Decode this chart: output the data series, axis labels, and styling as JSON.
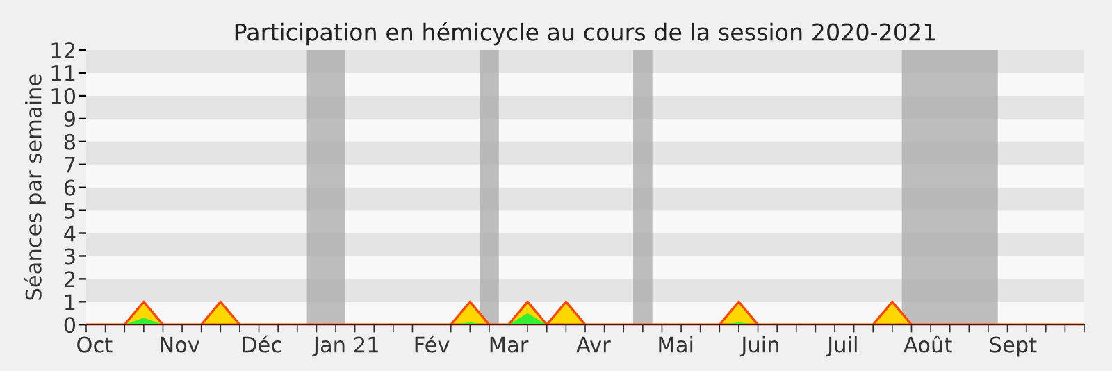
{
  "chart_data": {
    "type": "area",
    "title": "Participation en hémicycle au cours de la session 2020-2021",
    "ylabel": "Séances par semaine",
    "x": [
      "2020-09-28",
      "2020-10-05",
      "2020-10-12",
      "2020-10-19",
      "2020-10-26",
      "2020-11-02",
      "2020-11-09",
      "2020-11-16",
      "2020-11-23",
      "2020-11-30",
      "2020-12-07",
      "2020-12-14",
      "2020-12-21",
      "2020-12-28",
      "2021-01-04",
      "2021-01-11",
      "2021-01-18",
      "2021-01-25",
      "2021-02-01",
      "2021-02-08",
      "2021-02-15",
      "2021-02-22",
      "2021-03-01",
      "2021-03-08",
      "2021-03-15",
      "2021-03-22",
      "2021-03-29",
      "2021-04-05",
      "2021-04-12",
      "2021-04-19",
      "2021-04-26",
      "2021-05-03",
      "2021-05-10",
      "2021-05-17",
      "2021-05-24",
      "2021-05-31",
      "2021-06-07",
      "2021-06-14",
      "2021-06-21",
      "2021-06-28",
      "2021-07-05",
      "2021-07-12",
      "2021-07-19",
      "2021-07-26",
      "2021-08-02",
      "2021-08-09",
      "2021-08-16",
      "2021-08-23",
      "2021-08-30",
      "2021-09-06",
      "2021-09-13",
      "2021-09-20",
      "2021-09-27"
    ],
    "series": [
      {
        "color": "#ffd700",
        "values": [
          0,
          0,
          0,
          1,
          0,
          0,
          0,
          1,
          0,
          0,
          0,
          0,
          0,
          0,
          0,
          0,
          0,
          0,
          0,
          0,
          1,
          0,
          0,
          1,
          0,
          1,
          0,
          0,
          0,
          0,
          0,
          0,
          0,
          0,
          1,
          0,
          0,
          0,
          0,
          0,
          0,
          0,
          1,
          0,
          0,
          0,
          0,
          0,
          0,
          0,
          0,
          0,
          0
        ]
      },
      {
        "color": "#33ee33",
        "values": [
          0,
          0,
          0,
          0.3,
          0,
          0,
          0,
          0.05,
          0,
          0,
          0,
          0,
          0,
          0,
          0,
          0,
          0,
          0,
          0,
          0,
          0.1,
          0,
          0,
          0.5,
          0,
          0.05,
          0,
          0,
          0,
          0,
          0,
          0,
          0,
          0,
          0.1,
          0,
          0,
          0,
          0,
          0,
          0,
          0,
          0.05,
          0,
          0,
          0,
          0,
          0,
          0,
          0,
          0,
          0,
          0
        ]
      }
    ],
    "bands": [
      {
        "axis": "x",
        "from": "2020-12-17T12:00",
        "to": "2020-12-31T12:00",
        "color": "#aaaaaa"
      },
      {
        "axis": "x",
        "from": "2021-02-18T12:00",
        "to": "2021-02-25T12:00",
        "color": "#aaaaaa"
      },
      {
        "axis": "x",
        "from": "2021-04-15T12:00",
        "to": "2021-04-22T12:00",
        "color": "#aaaaaa"
      },
      {
        "axis": "x",
        "from": "2021-07-22T12:00",
        "to": "2021-08-26T12:00",
        "color": "#aaaaaa"
      }
    ],
    "xlim": [
      "2020-09-28",
      "2021-09-27"
    ],
    "xticks": [
      {
        "value": "2020-10-01",
        "label": "Oct"
      },
      {
        "value": "2020-11-01",
        "label": "Nov"
      },
      {
        "value": "2020-12-01",
        "label": "Déc"
      },
      {
        "value": "2021-01-01",
        "label": "Jan 21"
      },
      {
        "value": "2021-02-01",
        "label": "Fév"
      },
      {
        "value": "2021-03-01",
        "label": "Mar"
      },
      {
        "value": "2021-04-01",
        "label": "Avr"
      },
      {
        "value": "2021-05-01",
        "label": "Mai"
      },
      {
        "value": "2021-06-01",
        "label": "Juin"
      },
      {
        "value": "2021-07-01",
        "label": "Juil"
      },
      {
        "value": "2021-08-01",
        "label": "Août"
      },
      {
        "value": "2021-09-01",
        "label": "Sept"
      }
    ],
    "ylim": [
      0,
      12
    ],
    "yticks": [
      0,
      1,
      2,
      3,
      4,
      5,
      6,
      7,
      8,
      9,
      10,
      11,
      12
    ],
    "legend": false
  }
}
